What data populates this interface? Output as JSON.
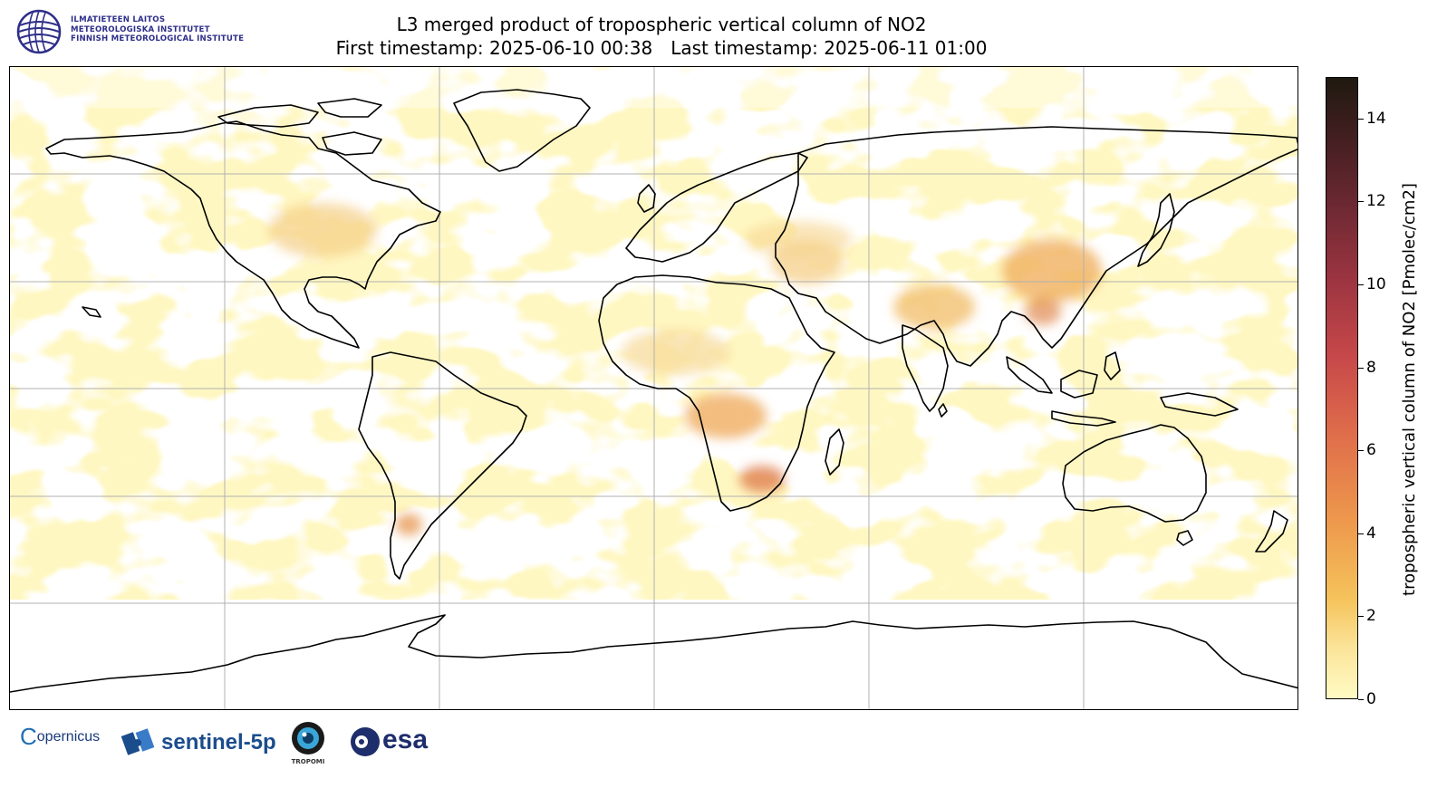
{
  "header": {
    "logo_lines": [
      "ILMATIETEEN LAITOS",
      "METEOROLOGISKA INSTITUTET",
      "FINNISH METEOROLOGICAL INSTITUTE"
    ],
    "title": "L3 merged product of tropospheric vertical column of NO2",
    "first_timestamp": "First timestamp: 2025-06-10 00:38",
    "last_timestamp": "Last timestamp: 2025-06-11 01:00"
  },
  "map": {
    "projection": "plate carree",
    "gridlines": true,
    "background_color": "#fff7c2",
    "no_data_color": "#ffffff",
    "coastline_color": "#000000"
  },
  "colorbar": {
    "label": "tropospheric vertical column of NO2 [Pmolec/cm2]",
    "min": 0,
    "max": 15,
    "ticks": [
      "0",
      "2",
      "4",
      "6",
      "8",
      "10",
      "12",
      "14"
    ],
    "tick_values": [
      0,
      2,
      4,
      6,
      8,
      10,
      12,
      14
    ]
  },
  "footer": {
    "copernicus": "opernicus",
    "sentinel": "sentinel-5p",
    "tropomi": "TROPOMI",
    "esa": "esa"
  }
}
